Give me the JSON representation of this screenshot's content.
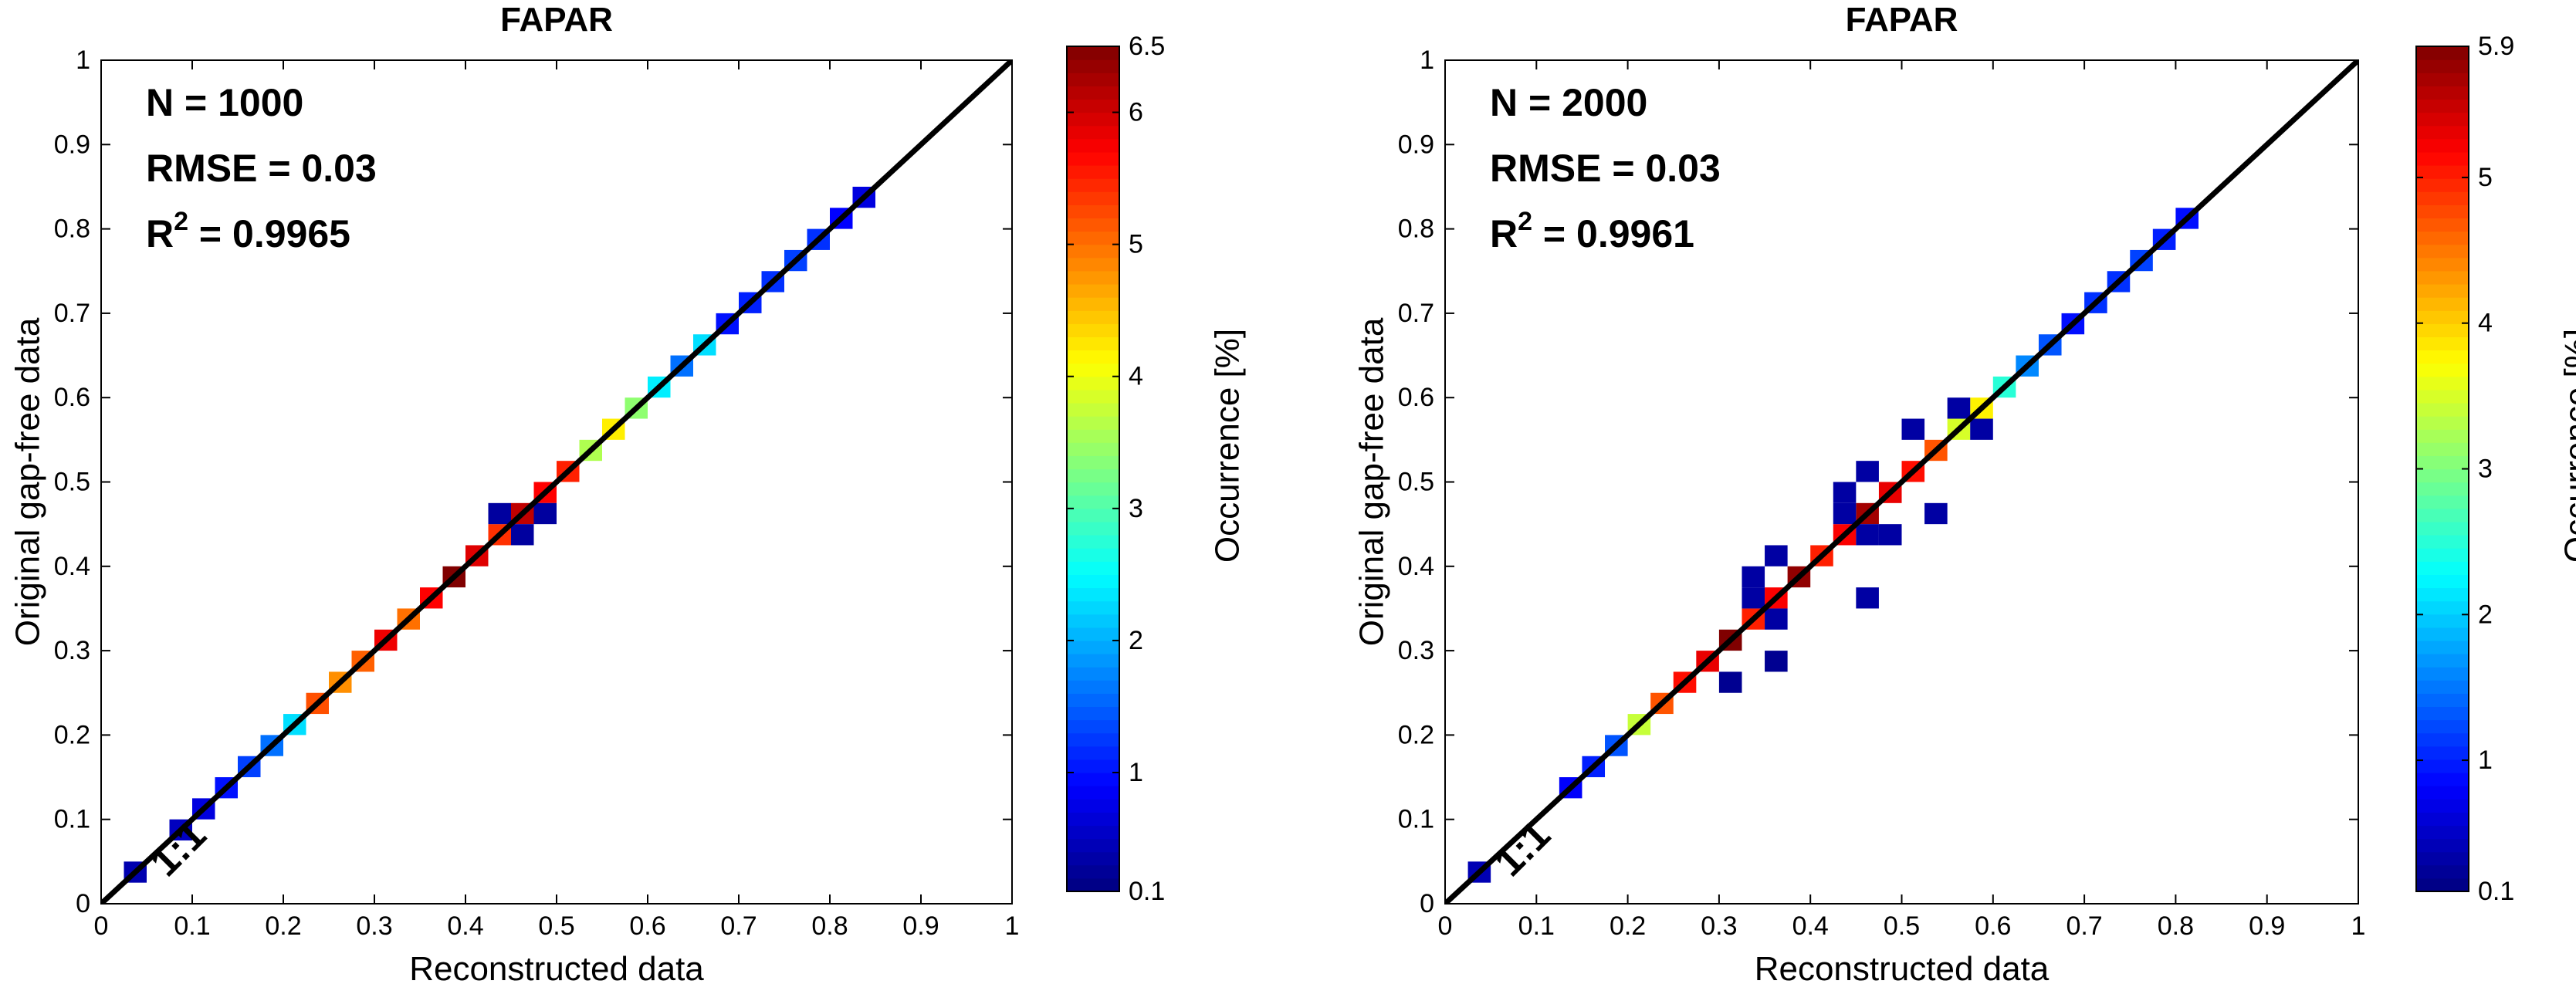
{
  "chart_data": [
    {
      "type": "heatmap",
      "title": "FAPAR",
      "xlabel": "Reconstructed data",
      "ylabel": "Original gap-free data",
      "xlim": [
        0,
        1
      ],
      "ylim": [
        0,
        1
      ],
      "xticks": [
        "0",
        "0.1",
        "0.2",
        "0.3",
        "0.4",
        "0.5",
        "0.6",
        "0.7",
        "0.8",
        "0.9",
        "1"
      ],
      "yticks": [
        "0",
        "0.1",
        "0.2",
        "0.3",
        "0.4",
        "0.5",
        "0.6",
        "0.7",
        "0.8",
        "0.9",
        "1"
      ],
      "annotations": {
        "n_text": "N = 1000",
        "rmse_text": "RMSE = 0.03",
        "r2_prefix": "R",
        "r2_sup": "2",
        "r2_value": " = 0.9965",
        "one_to_one": "1:1"
      },
      "reference_line": "1:1",
      "colorbar": {
        "label": "Occurrence [%]",
        "min": 0.1,
        "max": 6.5,
        "ticks": [
          "0.1",
          "1",
          "2",
          "3",
          "4",
          "5",
          "6",
          "6.5"
        ],
        "tick_values": [
          0.1,
          1,
          2,
          3,
          4,
          5,
          6,
          6.5
        ]
      },
      "bin_width": 0.025,
      "points": [
        {
          "x": 0.0375,
          "y": 0.0375,
          "v": 0.4
        },
        {
          "x": 0.0875,
          "y": 0.0875,
          "v": 0.5
        },
        {
          "x": 0.1125,
          "y": 0.1125,
          "v": 0.7
        },
        {
          "x": 0.1375,
          "y": 0.1375,
          "v": 1.0
        },
        {
          "x": 0.1625,
          "y": 0.1625,
          "v": 1.3
        },
        {
          "x": 0.1875,
          "y": 0.1875,
          "v": 1.6
        },
        {
          "x": 0.2125,
          "y": 0.2125,
          "v": 2.3
        },
        {
          "x": 0.2375,
          "y": 0.2375,
          "v": 5.2
        },
        {
          "x": 0.2625,
          "y": 0.2625,
          "v": 4.8
        },
        {
          "x": 0.2875,
          "y": 0.2875,
          "v": 5.1
        },
        {
          "x": 0.3125,
          "y": 0.3125,
          "v": 5.8
        },
        {
          "x": 0.3375,
          "y": 0.3375,
          "v": 5.0
        },
        {
          "x": 0.3625,
          "y": 0.3625,
          "v": 5.7
        },
        {
          "x": 0.3875,
          "y": 0.3875,
          "v": 6.5
        },
        {
          "x": 0.4125,
          "y": 0.4125,
          "v": 5.9
        },
        {
          "x": 0.4375,
          "y": 0.4375,
          "v": 5.4
        },
        {
          "x": 0.4625,
          "y": 0.4625,
          "v": 6.1
        },
        {
          "x": 0.4875,
          "y": 0.4875,
          "v": 5.7
        },
        {
          "x": 0.5125,
          "y": 0.5125,
          "v": 5.5
        },
        {
          "x": 0.5375,
          "y": 0.5375,
          "v": 3.6
        },
        {
          "x": 0.5625,
          "y": 0.5625,
          "v": 4.2
        },
        {
          "x": 0.5875,
          "y": 0.5875,
          "v": 3.4
        },
        {
          "x": 0.6125,
          "y": 0.6125,
          "v": 2.4
        },
        {
          "x": 0.6375,
          "y": 0.6375,
          "v": 1.6
        },
        {
          "x": 0.6625,
          "y": 0.6625,
          "v": 2.3
        },
        {
          "x": 0.6875,
          "y": 0.6875,
          "v": 1.0
        },
        {
          "x": 0.7125,
          "y": 0.7125,
          "v": 1.1
        },
        {
          "x": 0.7375,
          "y": 0.7375,
          "v": 1.2
        },
        {
          "x": 0.7625,
          "y": 0.7625,
          "v": 1.3
        },
        {
          "x": 0.7875,
          "y": 0.7875,
          "v": 1.2
        },
        {
          "x": 0.8125,
          "y": 0.8125,
          "v": 0.9
        },
        {
          "x": 0.8375,
          "y": 0.8375,
          "v": 0.7
        },
        {
          "x": 0.4375,
          "y": 0.4625,
          "v": 0.3
        },
        {
          "x": 0.4625,
          "y": 0.4375,
          "v": 0.3
        },
        {
          "x": 0.4875,
          "y": 0.4625,
          "v": 0.3
        }
      ]
    },
    {
      "type": "heatmap",
      "title": "FAPAR",
      "xlabel": "Reconstructed data",
      "ylabel": "Original gap-free data",
      "xlim": [
        0,
        1
      ],
      "ylim": [
        0,
        1
      ],
      "xticks": [
        "0",
        "0.1",
        "0.2",
        "0.3",
        "0.4",
        "0.5",
        "0.6",
        "0.7",
        "0.8",
        "0.9",
        "1"
      ],
      "yticks": [
        "0",
        "0.1",
        "0.2",
        "0.3",
        "0.4",
        "0.5",
        "0.6",
        "0.7",
        "0.8",
        "0.9",
        "1"
      ],
      "annotations": {
        "n_text": "N = 2000",
        "rmse_text": "RMSE = 0.03",
        "r2_prefix": "R",
        "r2_sup": "2",
        "r2_value": " = 0.9961",
        "one_to_one": "1:1"
      },
      "reference_line": "1:1",
      "colorbar": {
        "label": "Occurrence [%]",
        "min": 0.1,
        "max": 5.9,
        "ticks": [
          "0.1",
          "1",
          "2",
          "3",
          "4",
          "5",
          "5.9"
        ],
        "tick_values": [
          0.1,
          1,
          2,
          3,
          4,
          5,
          5.9
        ]
      },
      "bin_width": 0.025,
      "points": [
        {
          "x": 0.0375,
          "y": 0.0375,
          "v": 0.4
        },
        {
          "x": 0.1375,
          "y": 0.1375,
          "v": 0.8
        },
        {
          "x": 0.1625,
          "y": 0.1625,
          "v": 1.0
        },
        {
          "x": 0.1875,
          "y": 0.1875,
          "v": 1.3
        },
        {
          "x": 0.2125,
          "y": 0.2125,
          "v": 3.4
        },
        {
          "x": 0.2375,
          "y": 0.2375,
          "v": 4.7
        },
        {
          "x": 0.2625,
          "y": 0.2625,
          "v": 5.1
        },
        {
          "x": 0.2875,
          "y": 0.2875,
          "v": 5.3
        },
        {
          "x": 0.3125,
          "y": 0.3125,
          "v": 5.9
        },
        {
          "x": 0.3375,
          "y": 0.3375,
          "v": 5.0
        },
        {
          "x": 0.3625,
          "y": 0.3625,
          "v": 5.2
        },
        {
          "x": 0.3875,
          "y": 0.3875,
          "v": 5.8
        },
        {
          "x": 0.4125,
          "y": 0.4125,
          "v": 5.0
        },
        {
          "x": 0.4375,
          "y": 0.4375,
          "v": 5.2
        },
        {
          "x": 0.4625,
          "y": 0.4625,
          "v": 5.7
        },
        {
          "x": 0.4875,
          "y": 0.4875,
          "v": 5.3
        },
        {
          "x": 0.5125,
          "y": 0.5125,
          "v": 5.1
        },
        {
          "x": 0.5375,
          "y": 0.5375,
          "v": 4.7
        },
        {
          "x": 0.5625,
          "y": 0.5625,
          "v": 3.5
        },
        {
          "x": 0.5875,
          "y": 0.5875,
          "v": 3.8
        },
        {
          "x": 0.6125,
          "y": 0.6125,
          "v": 2.5
        },
        {
          "x": 0.6375,
          "y": 0.6375,
          "v": 1.6
        },
        {
          "x": 0.6625,
          "y": 0.6625,
          "v": 1.3
        },
        {
          "x": 0.6875,
          "y": 0.6875,
          "v": 0.9
        },
        {
          "x": 0.7125,
          "y": 0.7125,
          "v": 1.1
        },
        {
          "x": 0.7375,
          "y": 0.7375,
          "v": 1.1
        },
        {
          "x": 0.7625,
          "y": 0.7625,
          "v": 1.2
        },
        {
          "x": 0.7875,
          "y": 0.7875,
          "v": 1.0
        },
        {
          "x": 0.8125,
          "y": 0.8125,
          "v": 0.9
        },
        {
          "x": 0.3125,
          "y": 0.2625,
          "v": 0.2
        },
        {
          "x": 0.3625,
          "y": 0.2875,
          "v": 0.2
        },
        {
          "x": 0.3375,
          "y": 0.3625,
          "v": 0.3
        },
        {
          "x": 0.3375,
          "y": 0.3875,
          "v": 0.3
        },
        {
          "x": 0.3625,
          "y": 0.3375,
          "v": 0.3
        },
        {
          "x": 0.3625,
          "y": 0.4125,
          "v": 0.3
        },
        {
          "x": 0.4375,
          "y": 0.4625,
          "v": 0.3
        },
        {
          "x": 0.4375,
          "y": 0.4875,
          "v": 0.3
        },
        {
          "x": 0.4625,
          "y": 0.4375,
          "v": 0.3
        },
        {
          "x": 0.4625,
          "y": 0.3625,
          "v": 0.3
        },
        {
          "x": 0.4625,
          "y": 0.5125,
          "v": 0.3
        },
        {
          "x": 0.4875,
          "y": 0.4375,
          "v": 0.3
        },
        {
          "x": 0.5125,
          "y": 0.5625,
          "v": 0.3
        },
        {
          "x": 0.5375,
          "y": 0.4625,
          "v": 0.3
        },
        {
          "x": 0.5625,
          "y": 0.5875,
          "v": 0.3
        },
        {
          "x": 0.5875,
          "y": 0.5625,
          "v": 0.3
        }
      ]
    }
  ]
}
